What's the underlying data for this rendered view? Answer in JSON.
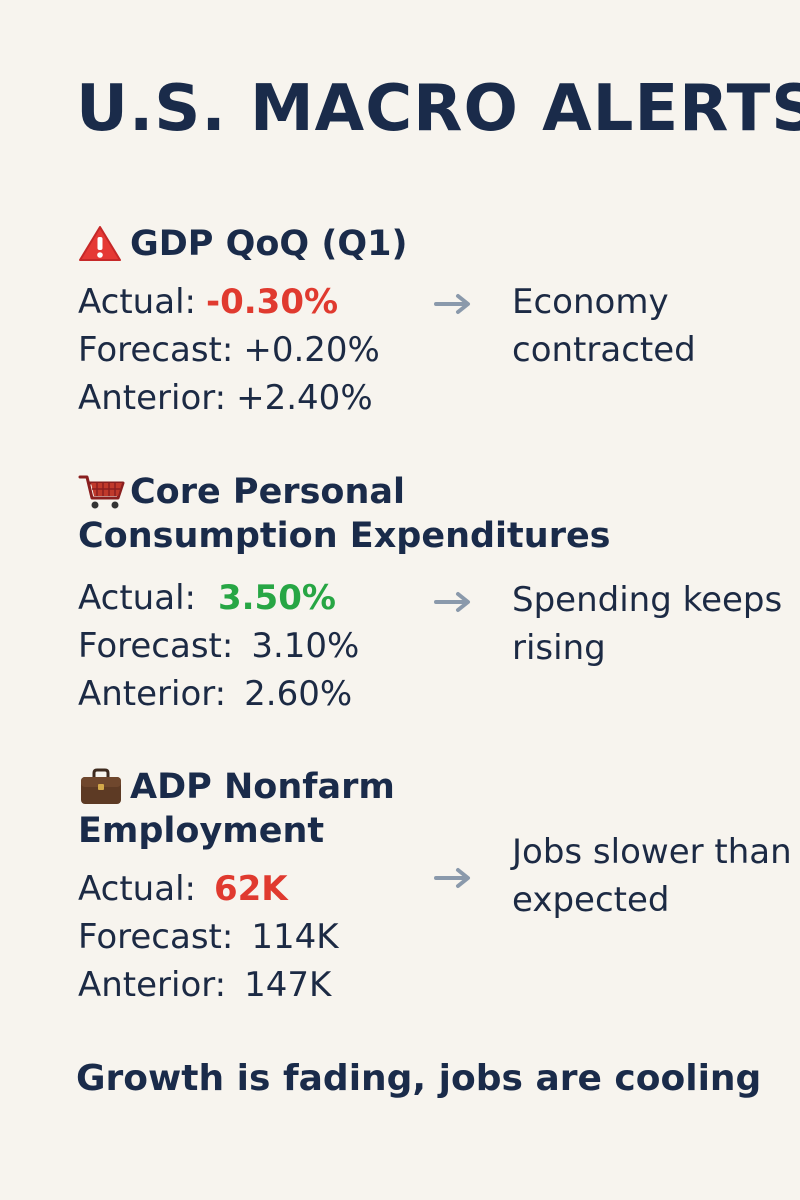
{
  "title": "U.S. MACRO ALERTS",
  "sections": [
    {
      "icon": "warning-triangle-icon",
      "title_line1": "GDP QoQ (Q1)",
      "title_line2": "",
      "actual_label": "Actual:",
      "actual_value": "-0.30%",
      "actual_color": "#e03a2f",
      "forecast_label": "Forecast:",
      "forecast_value": "+0.20%",
      "anterior_label": "Anterior:",
      "anterior_value": "+2.40%",
      "note": "Economy contracted"
    },
    {
      "icon": "shopping-cart-icon",
      "title_line1": "Core Personal",
      "title_line2": "Consumption Expenditures",
      "actual_label": "Actual:",
      "actual_value": "3.50%",
      "actual_color": "#27a644",
      "forecast_label": "Forecast:",
      "forecast_value": "3.10%",
      "anterior_label": "Anterior:",
      "anterior_value": "2.60%",
      "note": "Spending keeps rising"
    },
    {
      "icon": "briefcase-icon",
      "title_line1": "ADP Nonfarm",
      "title_line2": "Employment",
      "actual_label": "Actual:",
      "actual_value": "62K",
      "actual_color": "#e03a2f",
      "forecast_label": "Forecast:",
      "forecast_value": "114K",
      "anterior_label": "Anterior:",
      "anterior_value": "147K",
      "note": "Jobs slower than expected"
    }
  ],
  "footer": "Growth is fading, jobs are cooling"
}
